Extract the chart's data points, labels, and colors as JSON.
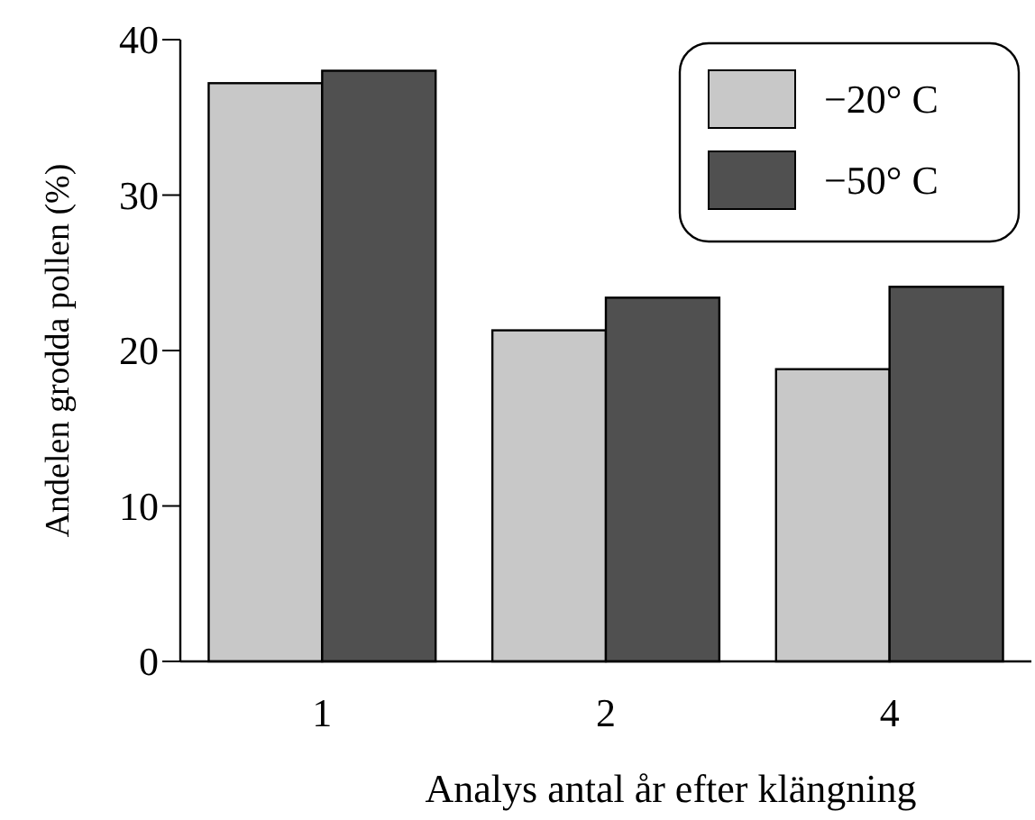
{
  "chart_data": {
    "type": "bar",
    "xlabel": "Analys antal år efter klängning",
    "ylabel": "Andelen grodda pollen (%)",
    "categories": [
      "1",
      "2",
      "4"
    ],
    "series": [
      {
        "name": "−20° C",
        "color": "#c8c8c8",
        "values": [
          37.2,
          21.3,
          18.8
        ]
      },
      {
        "name": "−50° C",
        "color": "#505050",
        "values": [
          38.0,
          23.4,
          24.1
        ]
      }
    ],
    "ylim": [
      0,
      40
    ],
    "yticks": [
      0,
      10,
      20,
      30,
      40
    ],
    "legend": "top right"
  }
}
